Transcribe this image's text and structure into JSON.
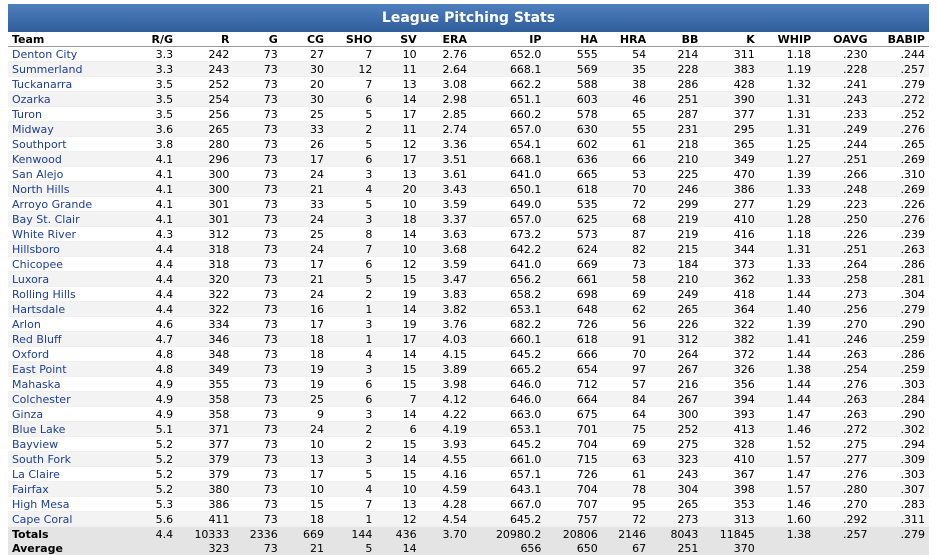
{
  "title": "League Pitching Stats",
  "columns": [
    "Team",
    "R/G",
    "R",
    "G",
    "CG",
    "SHO",
    "SV",
    "ERA",
    "IP",
    "HA",
    "HRA",
    "BB",
    "K",
    "WHIP",
    "OAVG",
    "BABIP"
  ],
  "rows": [
    [
      "Denton City",
      "3.3",
      "242",
      "73",
      "27",
      "7",
      "10",
      "2.76",
      "652.0",
      "555",
      "54",
      "214",
      "311",
      "1.18",
      ".230",
      ".244"
    ],
    [
      "Summerland",
      "3.3",
      "243",
      "73",
      "30",
      "12",
      "11",
      "2.64",
      "668.1",
      "569",
      "35",
      "228",
      "383",
      "1.19",
      ".228",
      ".257"
    ],
    [
      "Tuckanarra",
      "3.5",
      "252",
      "73",
      "20",
      "7",
      "13",
      "3.08",
      "662.2",
      "588",
      "38",
      "286",
      "428",
      "1.32",
      ".241",
      ".279"
    ],
    [
      "Ozarka",
      "3.5",
      "254",
      "73",
      "30",
      "6",
      "14",
      "2.98",
      "651.1",
      "603",
      "46",
      "251",
      "390",
      "1.31",
      ".243",
      ".272"
    ],
    [
      "Turon",
      "3.5",
      "256",
      "73",
      "25",
      "5",
      "17",
      "2.85",
      "660.2",
      "578",
      "65",
      "287",
      "377",
      "1.31",
      ".233",
      ".252"
    ],
    [
      "Midway",
      "3.6",
      "265",
      "73",
      "33",
      "2",
      "11",
      "2.74",
      "657.0",
      "630",
      "55",
      "231",
      "295",
      "1.31",
      ".249",
      ".276"
    ],
    [
      "Southport",
      "3.8",
      "280",
      "73",
      "26",
      "5",
      "12",
      "3.36",
      "654.1",
      "602",
      "61",
      "218",
      "365",
      "1.25",
      ".244",
      ".265"
    ],
    [
      "Kenwood",
      "4.1",
      "296",
      "73",
      "17",
      "6",
      "17",
      "3.51",
      "668.1",
      "636",
      "66",
      "210",
      "349",
      "1.27",
      ".251",
      ".269"
    ],
    [
      "San Alejo",
      "4.1",
      "300",
      "73",
      "24",
      "3",
      "13",
      "3.61",
      "641.0",
      "665",
      "53",
      "225",
      "470",
      "1.39",
      ".266",
      ".310"
    ],
    [
      "North Hills",
      "4.1",
      "300",
      "73",
      "21",
      "4",
      "20",
      "3.43",
      "650.1",
      "618",
      "70",
      "246",
      "386",
      "1.33",
      ".248",
      ".269"
    ],
    [
      "Arroyo Grande",
      "4.1",
      "301",
      "73",
      "33",
      "5",
      "10",
      "3.59",
      "649.0",
      "535",
      "72",
      "299",
      "277",
      "1.29",
      ".223",
      ".226"
    ],
    [
      "Bay St. Clair",
      "4.1",
      "301",
      "73",
      "24",
      "3",
      "18",
      "3.37",
      "657.0",
      "625",
      "68",
      "219",
      "410",
      "1.28",
      ".250",
      ".276"
    ],
    [
      "White River",
      "4.3",
      "312",
      "73",
      "25",
      "8",
      "14",
      "3.63",
      "673.2",
      "573",
      "87",
      "219",
      "416",
      "1.18",
      ".226",
      ".239"
    ],
    [
      "Hillsboro",
      "4.4",
      "318",
      "73",
      "24",
      "7",
      "10",
      "3.68",
      "642.2",
      "624",
      "82",
      "215",
      "344",
      "1.31",
      ".251",
      ".263"
    ],
    [
      "Chicopee",
      "4.4",
      "318",
      "73",
      "17",
      "6",
      "12",
      "3.59",
      "641.0",
      "669",
      "73",
      "184",
      "373",
      "1.33",
      ".264",
      ".286"
    ],
    [
      "Luxora",
      "4.4",
      "320",
      "73",
      "21",
      "5",
      "15",
      "3.47",
      "656.2",
      "661",
      "58",
      "210",
      "362",
      "1.33",
      ".258",
      ".281"
    ],
    [
      "Rolling Hills",
      "4.4",
      "322",
      "73",
      "24",
      "2",
      "19",
      "3.83",
      "658.2",
      "698",
      "69",
      "249",
      "418",
      "1.44",
      ".273",
      ".304"
    ],
    [
      "Hartsdale",
      "4.4",
      "322",
      "73",
      "16",
      "1",
      "14",
      "3.82",
      "653.1",
      "648",
      "62",
      "265",
      "364",
      "1.40",
      ".256",
      ".279"
    ],
    [
      "Arlon",
      "4.6",
      "334",
      "73",
      "17",
      "3",
      "19",
      "3.76",
      "682.2",
      "726",
      "56",
      "226",
      "322",
      "1.39",
      ".270",
      ".290"
    ],
    [
      "Red Bluff",
      "4.7",
      "346",
      "73",
      "18",
      "1",
      "17",
      "4.03",
      "660.1",
      "618",
      "91",
      "312",
      "382",
      "1.41",
      ".246",
      ".259"
    ],
    [
      "Oxford",
      "4.8",
      "348",
      "73",
      "18",
      "4",
      "14",
      "4.15",
      "645.2",
      "666",
      "70",
      "264",
      "372",
      "1.44",
      ".263",
      ".286"
    ],
    [
      "East Point",
      "4.8",
      "349",
      "73",
      "19",
      "3",
      "15",
      "3.89",
      "665.2",
      "654",
      "97",
      "267",
      "326",
      "1.38",
      ".254",
      ".259"
    ],
    [
      "Mahaska",
      "4.9",
      "355",
      "73",
      "19",
      "6",
      "15",
      "3.98",
      "646.0",
      "712",
      "57",
      "216",
      "356",
      "1.44",
      ".276",
      ".303"
    ],
    [
      "Colchester",
      "4.9",
      "358",
      "73",
      "25",
      "6",
      "7",
      "4.12",
      "646.0",
      "664",
      "84",
      "267",
      "394",
      "1.44",
      ".263",
      ".284"
    ],
    [
      "Ginza",
      "4.9",
      "358",
      "73",
      "9",
      "3",
      "14",
      "4.22",
      "663.0",
      "675",
      "64",
      "300",
      "393",
      "1.47",
      ".263",
      ".290"
    ],
    [
      "Blue Lake",
      "5.1",
      "371",
      "73",
      "24",
      "2",
      "6",
      "4.19",
      "653.1",
      "701",
      "75",
      "252",
      "413",
      "1.46",
      ".272",
      ".302"
    ],
    [
      "Bayview",
      "5.2",
      "377",
      "73",
      "10",
      "2",
      "15",
      "3.93",
      "645.2",
      "704",
      "69",
      "275",
      "328",
      "1.52",
      ".275",
      ".294"
    ],
    [
      "South Fork",
      "5.2",
      "379",
      "73",
      "13",
      "3",
      "14",
      "4.55",
      "661.0",
      "715",
      "63",
      "323",
      "410",
      "1.57",
      ".277",
      ".309"
    ],
    [
      "La Claire",
      "5.2",
      "379",
      "73",
      "17",
      "5",
      "15",
      "4.16",
      "657.1",
      "726",
      "61",
      "243",
      "367",
      "1.47",
      ".276",
      ".303"
    ],
    [
      "Fairfax",
      "5.2",
      "380",
      "73",
      "10",
      "4",
      "10",
      "4.59",
      "643.1",
      "704",
      "78",
      "304",
      "398",
      "1.57",
      ".280",
      ".307"
    ],
    [
      "High Mesa",
      "5.3",
      "386",
      "73",
      "15",
      "7",
      "13",
      "4.28",
      "667.0",
      "707",
      "95",
      "265",
      "353",
      "1.46",
      ".270",
      ".283"
    ],
    [
      "Cape Coral",
      "5.6",
      "411",
      "73",
      "18",
      "1",
      "12",
      "4.54",
      "645.2",
      "757",
      "72",
      "273",
      "313",
      "1.60",
      ".292",
      ".311"
    ]
  ],
  "totals": [
    "Totals",
    "4.4",
    "10333",
    "2336",
    "669",
    "144",
    "436",
    "3.70",
    "20980.2",
    "20806",
    "2146",
    "8043",
    "11845",
    "1.38",
    ".257",
    ".279"
  ],
  "average": [
    "Average",
    "",
    "323",
    "73",
    "21",
    "5",
    "14",
    "",
    "656",
    "650",
    "67",
    "251",
    "370",
    "",
    "",
    ""
  ]
}
